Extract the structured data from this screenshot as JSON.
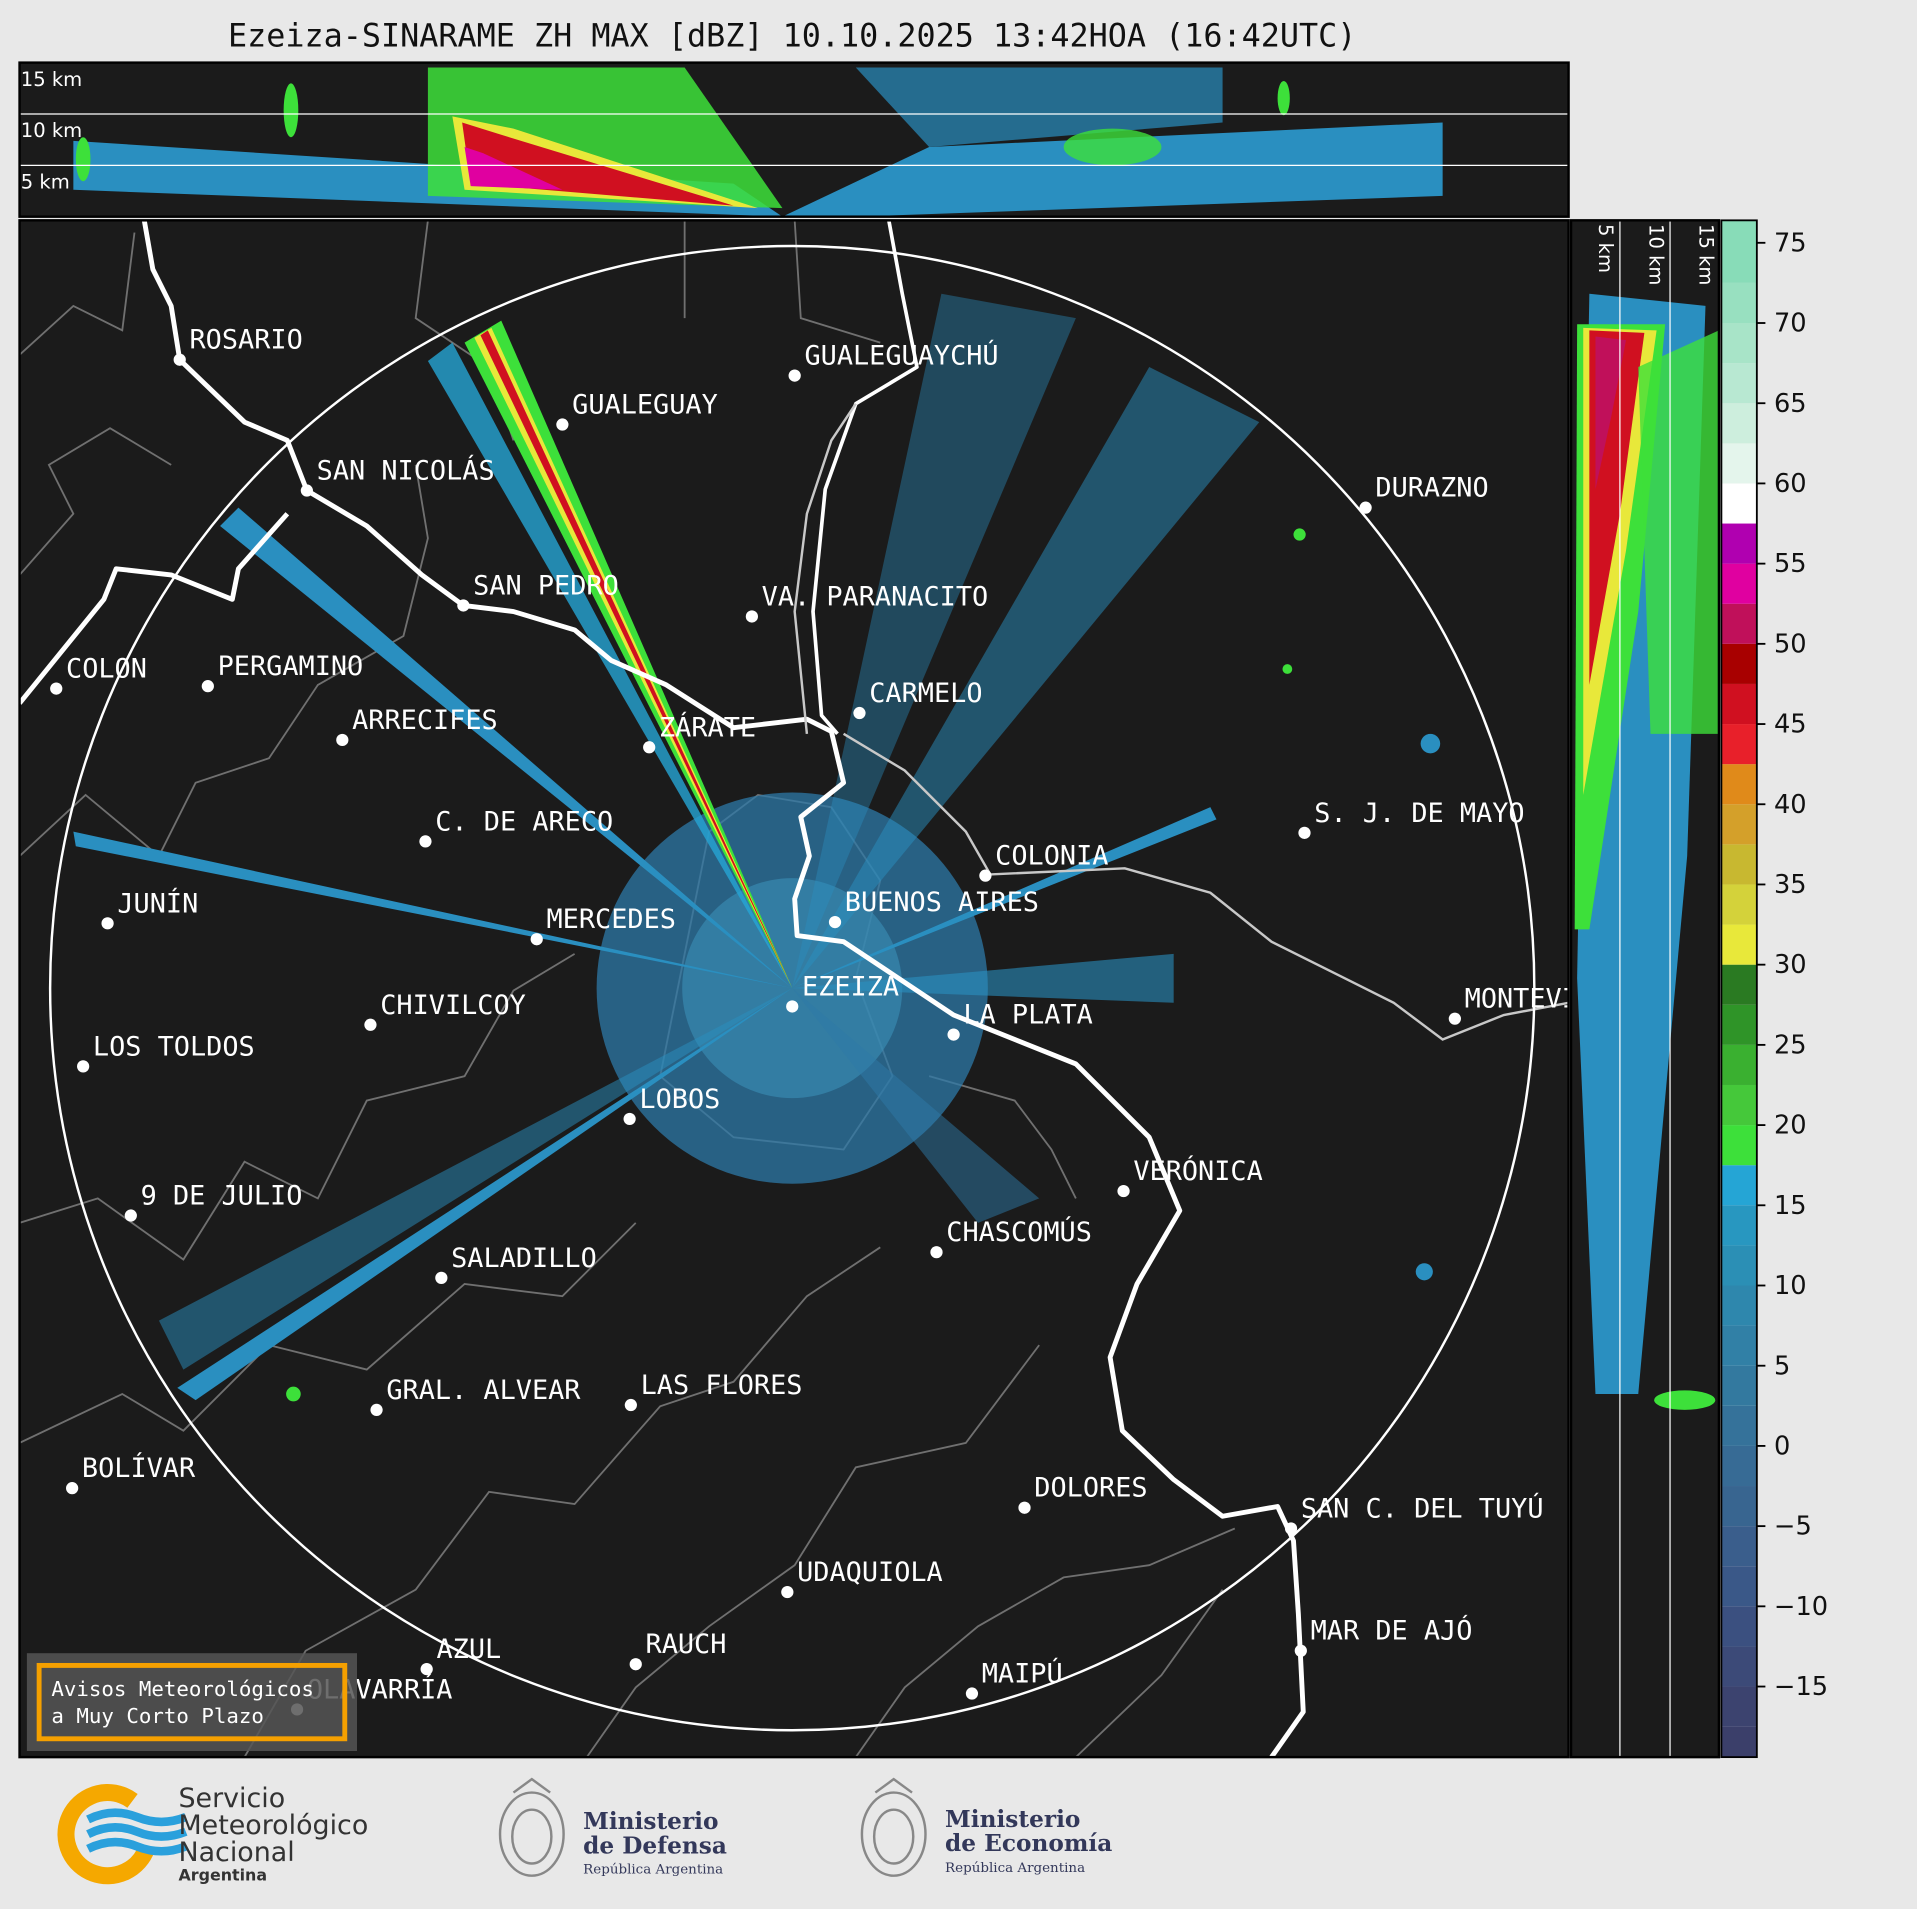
{
  "title": "Ezeiza-SINARAME ZH MAX [dBZ] 10.10.2025 13:42HOA (16:42UTC)",
  "top_panel": {
    "height_labels": [
      "15 km",
      "10 km",
      "5 km"
    ]
  },
  "side_panel": {
    "height_labels": [
      "5 km",
      "10 km",
      "15 km"
    ]
  },
  "cities": [
    "ROSARIO",
    "GUALEGUAYCHÚ",
    "GUALEGUAY",
    "SAN NICOLÁS",
    "DURAZNO",
    "SAN PEDRO",
    "VA. PARANACITO",
    "COLON",
    "PERGAMINO",
    "CARMELO",
    "ARRECIFES",
    "ZÁRATE",
    "C. DE ARECO",
    "S. J. DE MAYO",
    "COLONIA",
    "JUNÍN",
    "BUENOS AIRES",
    "MERCEDES",
    "EZEIZA",
    "MONTEVIDEO",
    "CHIVILCOY",
    "LA PLATA",
    "LOS TOLDOS",
    "LOBOS",
    "VERÓNICA",
    "9 DE JULIO",
    "CHASCOMÚS",
    "SALADILLO",
    "GRAL. ALVEAR",
    "LAS FLORES",
    "BOLÍVAR",
    "DOLORES",
    "SAN C. DEL TUYÚ",
    "UDAQUIOLA",
    "MAR DE AJÓ",
    "RAUCH",
    "AZUL",
    "OLAVARRÍA",
    "MAIPÚ"
  ],
  "colorbar": {
    "range": [
      -19.4,
      76.4
    ],
    "ticks": [
      {
        "value": -15,
        "label": "−15"
      },
      {
        "value": -10,
        "label": "−10"
      },
      {
        "value": -5,
        "label": "−5"
      },
      0,
      5,
      10,
      15,
      20,
      25,
      30,
      35,
      40,
      45,
      50,
      55,
      60,
      65,
      70,
      75
    ],
    "bounds": [
      -19.4,
      -17.5,
      -15,
      -12.5,
      -10,
      -7.5,
      -5,
      -2.5,
      0,
      2.5,
      5,
      7.5,
      10,
      12.5,
      15,
      17.5,
      20,
      22.5,
      25,
      27.5,
      30,
      32.5,
      35,
      37.5,
      40,
      42.5,
      45,
      47.5,
      50,
      52.5,
      55,
      57.5,
      60,
      62.5,
      65,
      67.5,
      70,
      72.5,
      76.4
    ],
    "colors": [
      "#3b3f6a",
      "#3c436f",
      "#3c4a78",
      "#3b5080",
      "#3a5888",
      "#3a5e8c",
      "#386590",
      "#376b95",
      "#35729a",
      "#33799f",
      "#3180a6",
      "#2e87ad",
      "#2b8fb5",
      "#2897c0",
      "#25a5d5",
      "#3de03a",
      "#45c83a",
      "#3ab030",
      "#2f9428",
      "#2a7a22",
      "#e8e83a",
      "#d4d23a",
      "#c8b830",
      "#d4a02a",
      "#e08a1a",
      "#e8202a",
      "#d01020",
      "#a80000",
      "#c0105a",
      "#e000a0",
      "#b000b0",
      "#ffffff",
      "#e4f5ec",
      "#cdeedd",
      "#b8e8d2",
      "#a8e4c8",
      "#98e0c0",
      "#88dcb8"
    ]
  },
  "notice": [
    "Avisos Meteorológicos",
    "a Muy Corto Plazo"
  ],
  "logos": [
    {
      "lines": [
        "Servicio",
        "Meteorológico",
        "Nacional"
      ],
      "subtitle": "Argentina"
    },
    {
      "lines": [
        "Ministerio",
        "de Defensa"
      ],
      "subtitle": "República Argentina"
    },
    {
      "lines": [
        "Ministerio",
        "de Economía"
      ],
      "subtitle": "República Argentina"
    }
  ]
}
